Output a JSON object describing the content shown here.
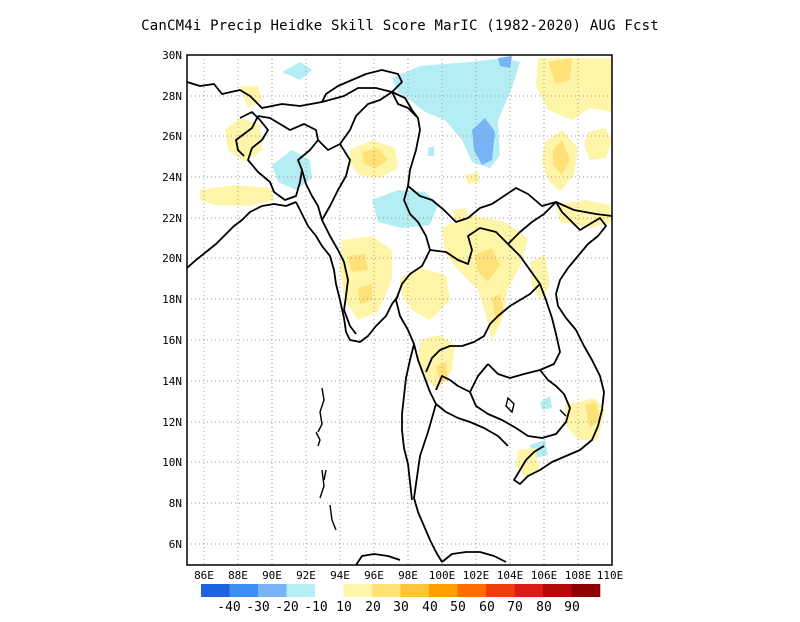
{
  "title": "CanCM4i Precip Heidke Skill Score MarIC (1982-2020) AUG Fcst",
  "map": {
    "lon_range": [
      85,
      110
    ],
    "lat_range": [
      5,
      30
    ],
    "lat_ticks": [
      "30N",
      "28N",
      "26N",
      "24N",
      "22N",
      "20N",
      "18N",
      "16N",
      "14N",
      "12N",
      "10N",
      "8N",
      "6N"
    ],
    "lon_ticks": [
      "86E",
      "88E",
      "90E",
      "92E",
      "94E",
      "96E",
      "98E",
      "100E",
      "102E",
      "104E",
      "106E",
      "108E",
      "110E"
    ],
    "grid": "dotted",
    "coast_color": "#000000"
  },
  "colorbar": {
    "colors": [
      "#1f62e0",
      "#3c8ef0",
      "#78b4f5",
      "#b4eef4",
      "#ffffff",
      "#fff5a8",
      "#ffe178",
      "#ffc23c",
      "#ffa000",
      "#ff6d00",
      "#f03d10",
      "#dc1c14",
      "#b40a0a",
      "#8c0000"
    ],
    "labels": [
      "-40",
      "-30",
      "-20",
      "-10",
      "10",
      "20",
      "30",
      "40",
      "50",
      "60",
      "70",
      "80",
      "90"
    ]
  }
}
